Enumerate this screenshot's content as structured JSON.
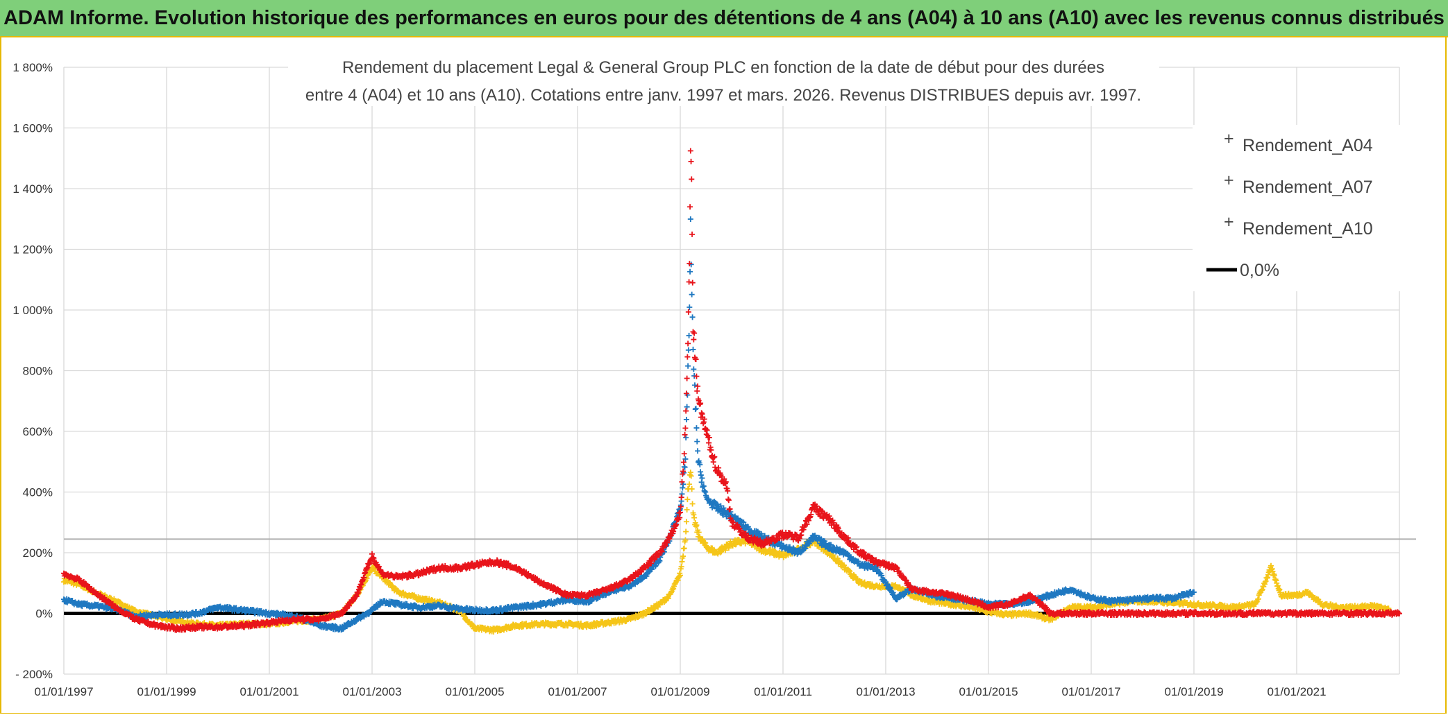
{
  "header": {
    "title": "ADAM Informe. Evolution historique des performances en euros pour des détentions de 4 ans (A04) à 10 ans (A10) avec les revenus connus distribués"
  },
  "chart_data": {
    "type": "scatter",
    "title_line1": "Rendement du placement Legal & General Group PLC en fonction de la date de début pour des durées",
    "title_line2": "entre 4 (A04) et 10 ans (A10). Cotations entre janv. 1997 et mars. 2026. Revenus DISTRIBUES depuis avr. 1997.",
    "xlabel": "",
    "ylabel": "",
    "ylim": [
      -200,
      1800
    ],
    "xlim": [
      "1997-01-01",
      "2023-03-01"
    ],
    "y_ticks": [
      "- 200%",
      "0%",
      "200%",
      "400%",
      "600%",
      "800%",
      "1 000%",
      "1 200%",
      "1 400%",
      "1 600%",
      "1 800%"
    ],
    "y_tick_values": [
      -200,
      0,
      200,
      400,
      600,
      800,
      1000,
      1200,
      1400,
      1600,
      1800
    ],
    "x_ticks": [
      "01/01/1997",
      "01/01/1999",
      "01/01/2001",
      "01/01/2003",
      "01/01/2005",
      "01/01/2007",
      "01/01/2009",
      "01/01/2011",
      "01/01/2013",
      "01/01/2015",
      "01/01/2017",
      "01/01/2019",
      "01/01/2021"
    ],
    "x_tick_years": [
      1997,
      1999,
      2001,
      2003,
      2005,
      2007,
      2009,
      2011,
      2013,
      2015,
      2017,
      2019,
      2021
    ],
    "grid": true,
    "reference_line_y": 245,
    "legend_position": "top-right",
    "series": [
      {
        "name": "Rendement_A04",
        "color": "#f5c518",
        "marker": "+",
        "points": [
          [
            1997.0,
            110
          ],
          [
            1997.3,
            95
          ],
          [
            1997.6,
            70
          ],
          [
            1998.0,
            40
          ],
          [
            1998.4,
            5
          ],
          [
            1998.8,
            -10
          ],
          [
            1999.2,
            -25
          ],
          [
            1999.6,
            -35
          ],
          [
            2000.0,
            -40
          ],
          [
            2000.5,
            -35
          ],
          [
            2001.0,
            -35
          ],
          [
            2001.5,
            -25
          ],
          [
            2002.0,
            -20
          ],
          [
            2002.4,
            0
          ],
          [
            2002.7,
            60
          ],
          [
            2003.0,
            150
          ],
          [
            2003.2,
            120
          ],
          [
            2003.5,
            70
          ],
          [
            2003.9,
            50
          ],
          [
            2004.3,
            35
          ],
          [
            2004.7,
            10
          ],
          [
            2005.0,
            -50
          ],
          [
            2005.4,
            -55
          ],
          [
            2005.8,
            -40
          ],
          [
            2006.3,
            -35
          ],
          [
            2006.8,
            -35
          ],
          [
            2007.2,
            -40
          ],
          [
            2007.6,
            -30
          ],
          [
            2008.0,
            -20
          ],
          [
            2008.3,
            0
          ],
          [
            2008.6,
            30
          ],
          [
            2008.8,
            60
          ],
          [
            2009.0,
            130
          ],
          [
            2009.1,
            250
          ],
          [
            2009.15,
            400
          ],
          [
            2009.2,
            480
          ],
          [
            2009.25,
            320
          ],
          [
            2009.35,
            260
          ],
          [
            2009.5,
            220
          ],
          [
            2009.7,
            200
          ],
          [
            2010.0,
            230
          ],
          [
            2010.3,
            240
          ],
          [
            2010.6,
            210
          ],
          [
            2011.0,
            190
          ],
          [
            2011.3,
            210
          ],
          [
            2011.6,
            240
          ],
          [
            2011.9,
            200
          ],
          [
            2012.2,
            150
          ],
          [
            2012.5,
            100
          ],
          [
            2012.8,
            90
          ],
          [
            2013.2,
            90
          ],
          [
            2013.5,
            60
          ],
          [
            2013.9,
            40
          ],
          [
            2014.3,
            30
          ],
          [
            2014.7,
            20
          ],
          [
            2015.0,
            5
          ],
          [
            2015.4,
            -5
          ],
          [
            2015.8,
            0
          ],
          [
            2016.2,
            -20
          ],
          [
            2016.6,
            20
          ],
          [
            2017.0,
            20
          ],
          [
            2017.4,
            30
          ],
          [
            2017.8,
            40
          ],
          [
            2018.2,
            40
          ],
          [
            2018.6,
            35
          ],
          [
            2019.0,
            30
          ],
          [
            2019.4,
            25
          ],
          [
            2019.8,
            20
          ],
          [
            2020.2,
            30
          ],
          [
            2020.5,
            150
          ],
          [
            2020.7,
            60
          ],
          [
            2021.0,
            60
          ],
          [
            2021.2,
            70
          ],
          [
            2021.5,
            30
          ],
          [
            2021.8,
            20
          ],
          [
            2022.2,
            20
          ],
          [
            2022.5,
            25
          ],
          [
            2022.8,
            10
          ]
        ]
      },
      {
        "name": "Rendement_A07",
        "color": "#1f78c1",
        "marker": "+",
        "points": [
          [
            1997.0,
            45
          ],
          [
            1997.3,
            30
          ],
          [
            1997.6,
            25
          ],
          [
            1998.0,
            15
          ],
          [
            1998.4,
            -10
          ],
          [
            1998.8,
            -5
          ],
          [
            1999.2,
            -5
          ],
          [
            1999.6,
            0
          ],
          [
            2000.0,
            20
          ],
          [
            2000.5,
            10
          ],
          [
            2001.0,
            0
          ],
          [
            2001.5,
            -10
          ],
          [
            2002.0,
            -40
          ],
          [
            2002.4,
            -50
          ],
          [
            2002.7,
            -20
          ],
          [
            2003.0,
            10
          ],
          [
            2003.2,
            40
          ],
          [
            2003.5,
            30
          ],
          [
            2003.9,
            20
          ],
          [
            2004.3,
            25
          ],
          [
            2004.7,
            15
          ],
          [
            2005.0,
            10
          ],
          [
            2005.4,
            10
          ],
          [
            2005.8,
            20
          ],
          [
            2006.3,
            30
          ],
          [
            2006.8,
            45
          ],
          [
            2007.2,
            40
          ],
          [
            2007.6,
            70
          ],
          [
            2008.0,
            90
          ],
          [
            2008.3,
            120
          ],
          [
            2008.6,
            180
          ],
          [
            2008.8,
            250
          ],
          [
            2009.0,
            350
          ],
          [
            2009.1,
            500
          ],
          [
            2009.15,
            800
          ],
          [
            2009.18,
            1000
          ],
          [
            2009.2,
            1260
          ],
          [
            2009.25,
            850
          ],
          [
            2009.35,
            500
          ],
          [
            2009.5,
            380
          ],
          [
            2009.7,
            350
          ],
          [
            2010.0,
            320
          ],
          [
            2010.3,
            280
          ],
          [
            2010.6,
            250
          ],
          [
            2011.0,
            220
          ],
          [
            2011.3,
            200
          ],
          [
            2011.6,
            250
          ],
          [
            2011.9,
            220
          ],
          [
            2012.2,
            200
          ],
          [
            2012.5,
            160
          ],
          [
            2012.8,
            150
          ],
          [
            2013.2,
            50
          ],
          [
            2013.5,
            80
          ],
          [
            2013.9,
            60
          ],
          [
            2014.3,
            50
          ],
          [
            2014.7,
            40
          ],
          [
            2015.0,
            30
          ],
          [
            2015.4,
            30
          ],
          [
            2015.8,
            40
          ],
          [
            2016.2,
            60
          ],
          [
            2016.6,
            80
          ],
          [
            2017.0,
            50
          ],
          [
            2017.4,
            40
          ],
          [
            2017.8,
            45
          ],
          [
            2018.2,
            50
          ],
          [
            2018.6,
            50
          ],
          [
            2019.0,
            70
          ]
        ]
      },
      {
        "name": "Rendement_A10",
        "color": "#e8141b",
        "marker": "+",
        "points": [
          [
            1997.0,
            130
          ],
          [
            1997.3,
            110
          ],
          [
            1997.6,
            70
          ],
          [
            1998.0,
            20
          ],
          [
            1998.4,
            -20
          ],
          [
            1998.8,
            -40
          ],
          [
            1999.2,
            -50
          ],
          [
            1999.6,
            -45
          ],
          [
            2000.0,
            -45
          ],
          [
            2000.5,
            -40
          ],
          [
            2001.0,
            -30
          ],
          [
            2001.5,
            -20
          ],
          [
            2002.0,
            -20
          ],
          [
            2002.4,
            0
          ],
          [
            2002.7,
            60
          ],
          [
            2003.0,
            190
          ],
          [
            2003.2,
            130
          ],
          [
            2003.5,
            120
          ],
          [
            2003.9,
            130
          ],
          [
            2004.3,
            150
          ],
          [
            2004.7,
            150
          ],
          [
            2005.0,
            160
          ],
          [
            2005.4,
            170
          ],
          [
            2005.8,
            150
          ],
          [
            2006.3,
            100
          ],
          [
            2006.8,
            60
          ],
          [
            2007.2,
            60
          ],
          [
            2007.6,
            80
          ],
          [
            2008.0,
            110
          ],
          [
            2008.3,
            150
          ],
          [
            2008.6,
            200
          ],
          [
            2008.8,
            250
          ],
          [
            2009.0,
            330
          ],
          [
            2009.1,
            600
          ],
          [
            2009.15,
            900
          ],
          [
            2009.18,
            1150
          ],
          [
            2009.2,
            1540
          ],
          [
            2009.22,
            1400
          ],
          [
            2009.25,
            950
          ],
          [
            2009.35,
            700
          ],
          [
            2009.5,
            600
          ],
          [
            2009.7,
            480
          ],
          [
            2009.9,
            420
          ],
          [
            2010.0,
            300
          ],
          [
            2010.3,
            250
          ],
          [
            2010.6,
            230
          ],
          [
            2011.0,
            260
          ],
          [
            2011.3,
            250
          ],
          [
            2011.6,
            350
          ],
          [
            2011.9,
            310
          ],
          [
            2012.2,
            250
          ],
          [
            2012.5,
            200
          ],
          [
            2012.8,
            170
          ],
          [
            2013.2,
            150
          ],
          [
            2013.5,
            80
          ],
          [
            2013.9,
            70
          ],
          [
            2014.3,
            60
          ],
          [
            2014.7,
            40
          ],
          [
            2015.0,
            20
          ],
          [
            2015.4,
            30
          ],
          [
            2015.8,
            60
          ],
          [
            2016.1,
            20
          ],
          [
            2016.2,
            0
          ],
          [
            2017.0,
            0
          ],
          [
            2018.0,
            0
          ],
          [
            2019.0,
            0
          ],
          [
            2020.0,
            0
          ],
          [
            2021.0,
            0
          ],
          [
            2022.0,
            0
          ],
          [
            2023.0,
            0
          ]
        ]
      },
      {
        "name": "0,0%",
        "color": "#000000",
        "marker": "line",
        "points": [
          [
            1997.0,
            0
          ],
          [
            2016.2,
            0
          ]
        ]
      }
    ]
  }
}
